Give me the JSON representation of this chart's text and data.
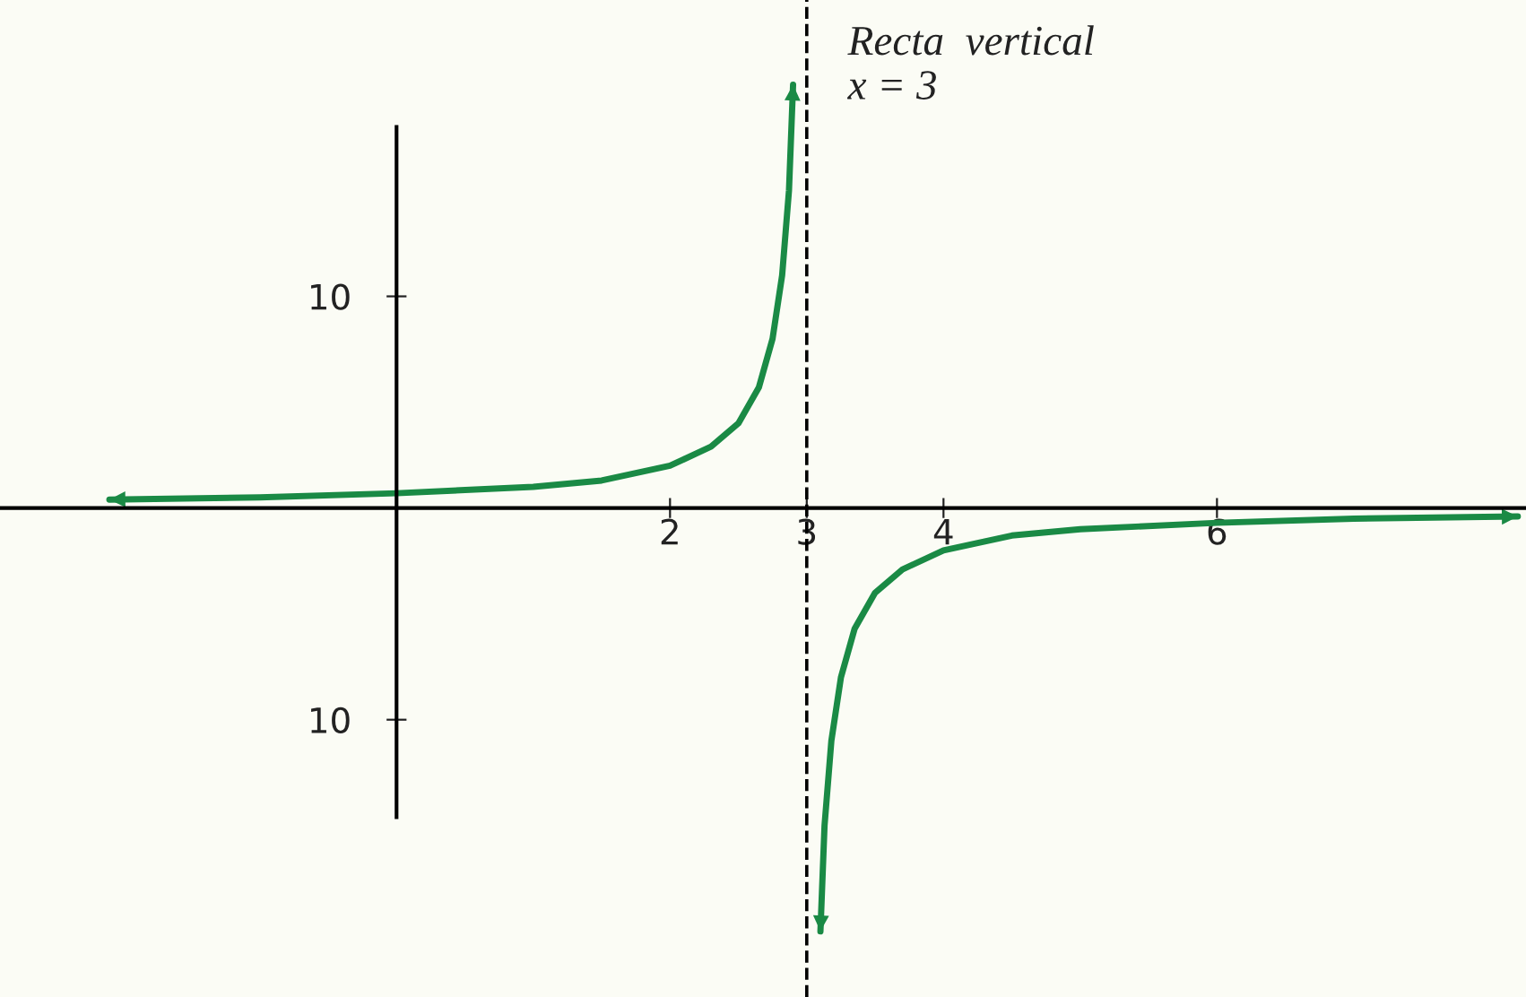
{
  "chart_data": {
    "type": "line",
    "xlim": [
      -2.9,
      8.26
    ],
    "ylim": [
      -23.1,
      24
    ],
    "xticks": [
      2,
      3,
      4,
      6
    ],
    "yticks": [
      {
        "value": -10,
        "label": "10"
      },
      10
    ],
    "series": [
      {
        "color": "#1a8a45",
        "x": [
          -2.1,
          -1,
          0,
          1,
          1.5,
          2,
          2.3,
          2.5,
          2.65,
          2.75,
          2.82,
          2.87,
          2.9,
          3.0,
          3.1,
          3.13,
          3.18,
          3.25,
          3.35,
          3.5,
          3.7,
          4,
          4.5,
          5,
          6,
          7,
          8.2
        ],
        "values": [
          0.4,
          0.5,
          0.7,
          1,
          1.3,
          2,
          2.9,
          4,
          5.7,
          8,
          11,
          15,
          20,
          null,
          -20,
          -15,
          -11,
          -8,
          -5.7,
          -4,
          -2.9,
          -2,
          -1.3,
          -1,
          -0.7,
          -0.5,
          -0.4
        ]
      }
    ],
    "ref_lines": [
      {
        "axis": "x",
        "value": 3,
        "label": "Recta  vertical\nx = 3",
        "line_style": "dashed",
        "color": "#000000"
      }
    ],
    "grid": false,
    "legend": false,
    "marker": "none",
    "line_style": "solid"
  }
}
